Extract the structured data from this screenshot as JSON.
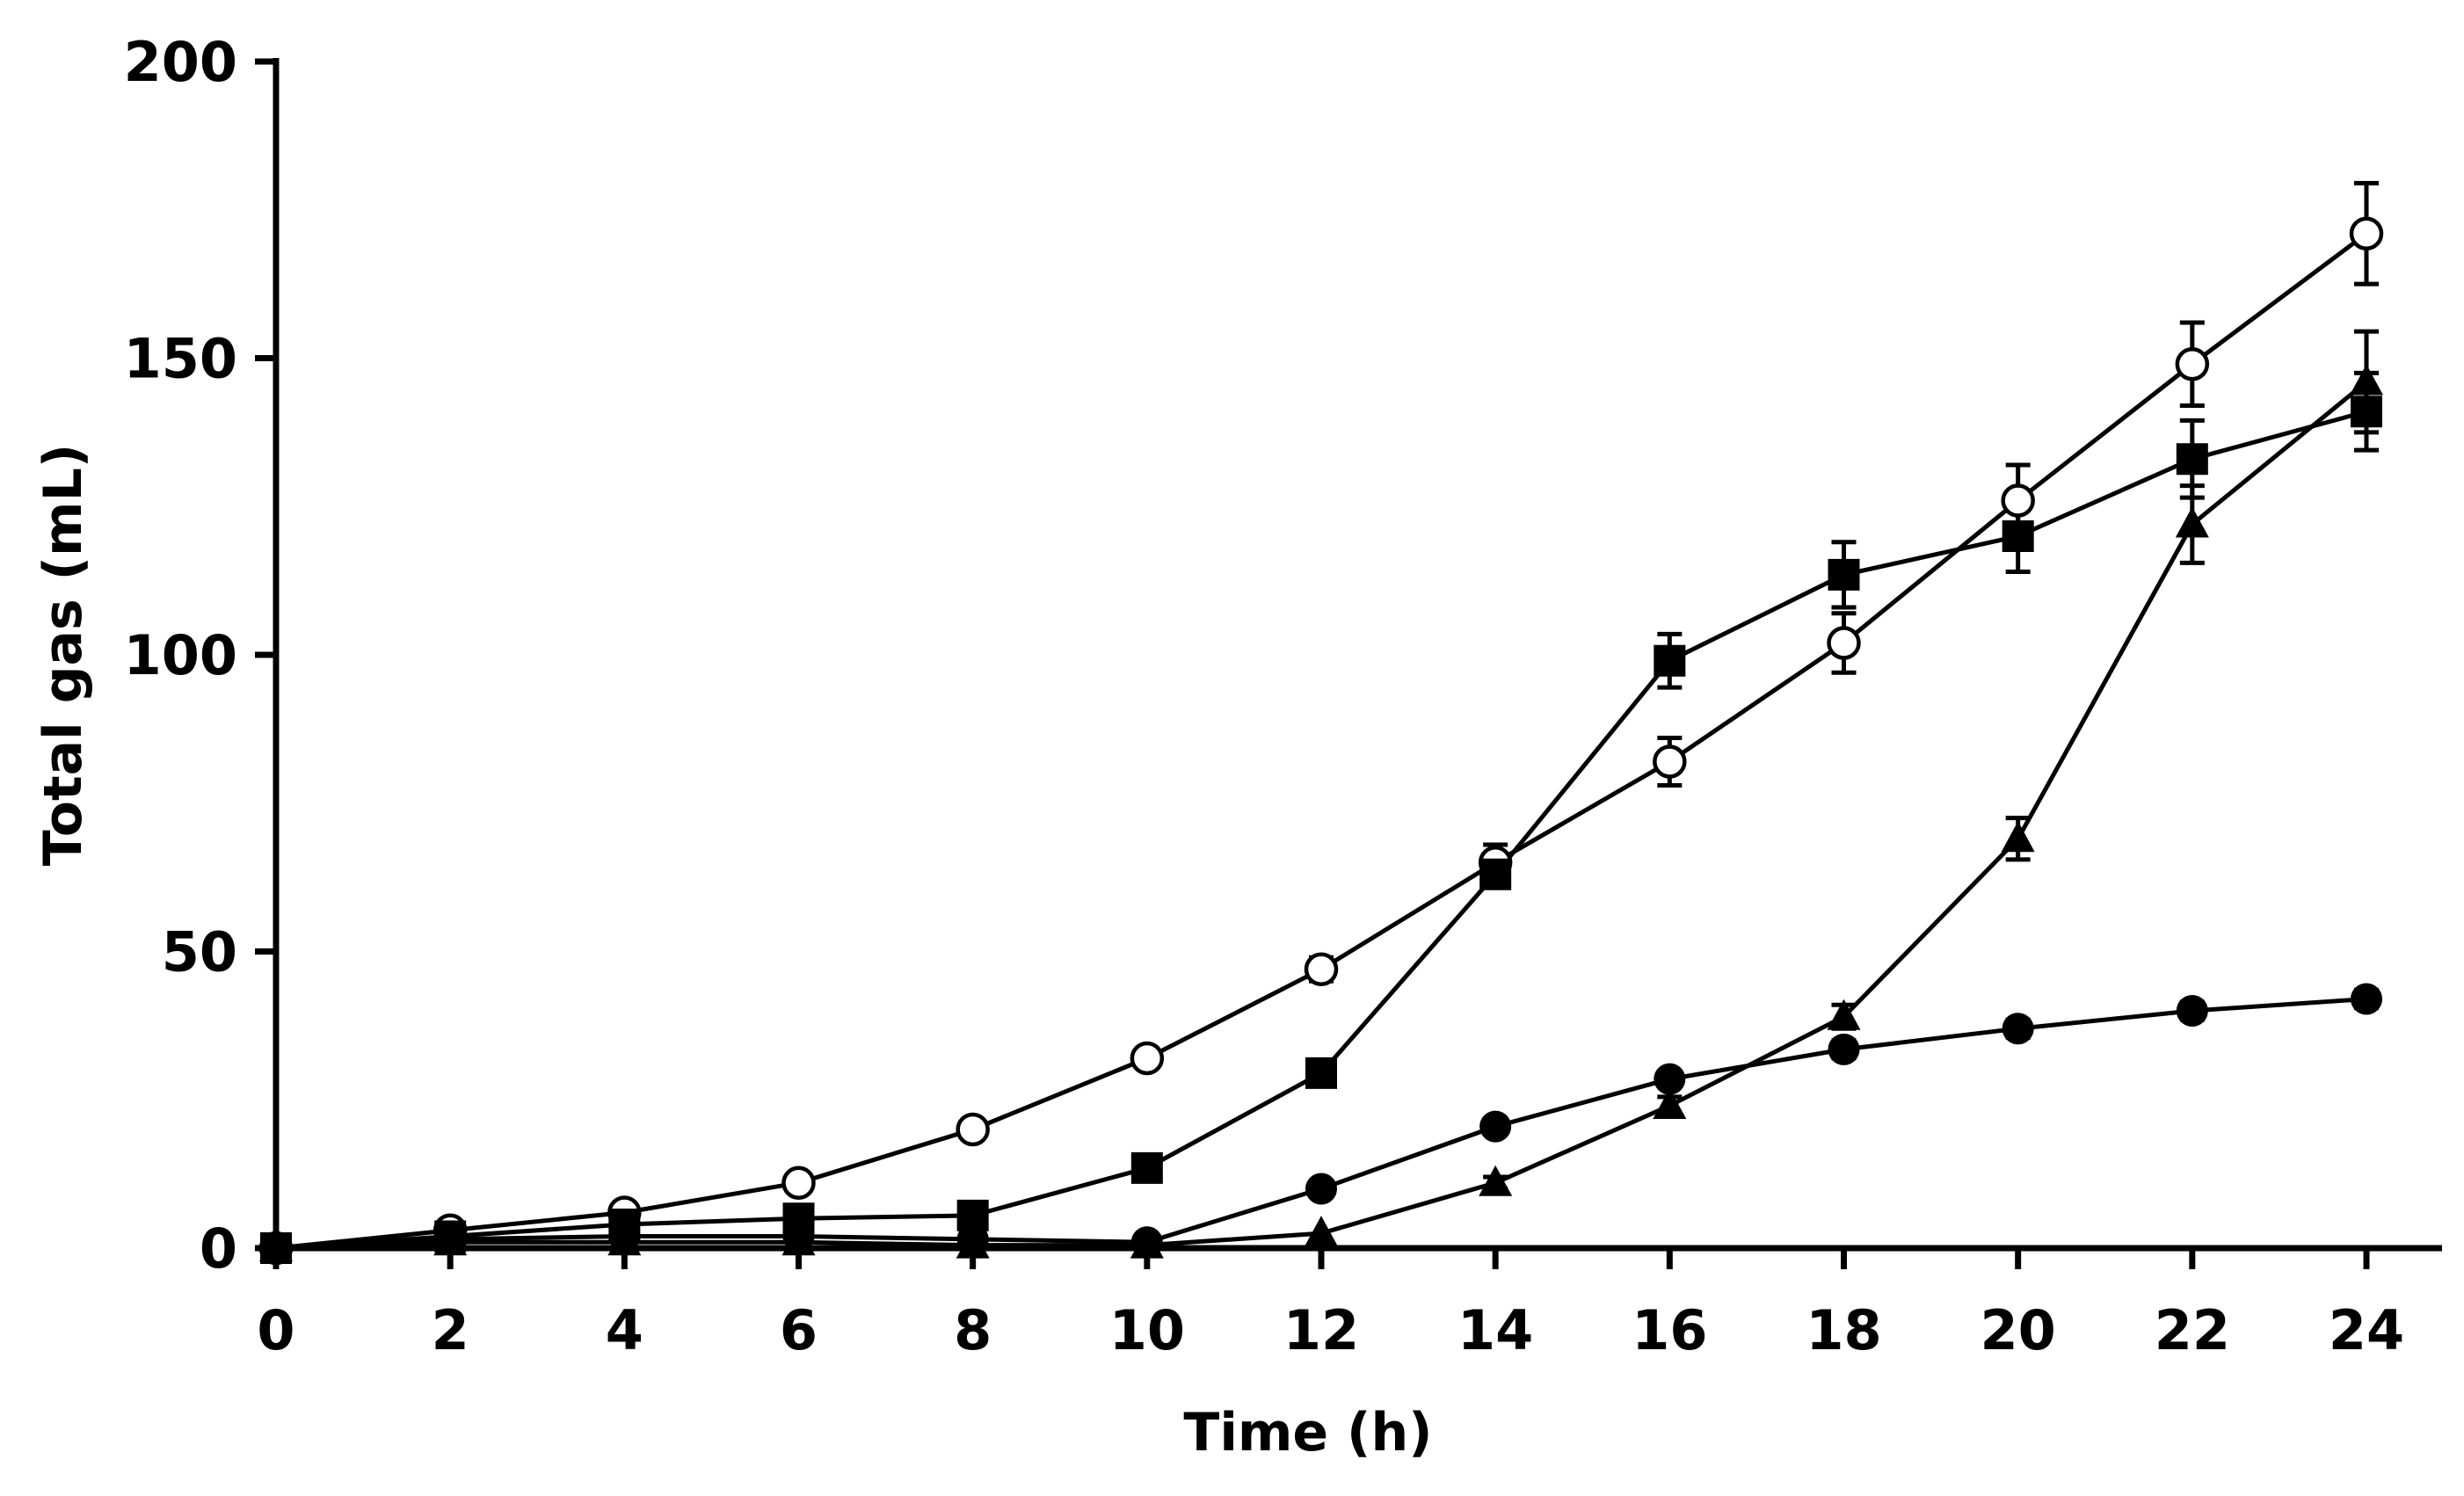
{
  "chart_data": {
    "type": "line",
    "title": "",
    "xlabel": "Time (h)",
    "ylabel": "Total gas (mL)",
    "xlim": [
      0,
      24
    ],
    "ylim": [
      0,
      200
    ],
    "x_ticks": [
      0,
      2,
      4,
      6,
      8,
      10,
      12,
      14,
      16,
      18,
      20,
      22,
      24
    ],
    "y_ticks": [
      0,
      50,
      100,
      150,
      200
    ],
    "x": [
      0,
      2,
      4,
      6,
      8,
      10,
      12,
      14,
      16,
      18,
      20,
      22,
      24
    ],
    "grid": false,
    "legend": "none",
    "series": [
      {
        "name": "open circle",
        "marker": "circle-open",
        "values": [
          0,
          3,
          6,
          11,
          20,
          32,
          47,
          65,
          82,
          102,
          126,
          149,
          171
        ],
        "errors": [
          0,
          0,
          0,
          0,
          0,
          0,
          2,
          3,
          4,
          5,
          6,
          7,
          8.5
        ]
      },
      {
        "name": "filled square",
        "marker": "square-filled",
        "values": [
          0,
          2,
          4,
          5,
          5.5,
          13.5,
          29.5,
          63,
          99,
          113.5,
          120,
          133,
          141
        ],
        "errors": [
          0,
          0,
          0,
          0,
          0,
          0,
          0,
          2,
          4.5,
          5.5,
          6,
          6.5,
          6.5
        ]
      },
      {
        "name": "filled triangle",
        "marker": "triangle-filled",
        "values": [
          0,
          1,
          1,
          1,
          0.5,
          0.5,
          2.5,
          11,
          24,
          39,
          69,
          122,
          146
        ],
        "errors": [
          0,
          0,
          0,
          0,
          0,
          0,
          0,
          1,
          1.5,
          2,
          3.5,
          6.5,
          8.5
        ]
      },
      {
        "name": "filled circle",
        "marker": "circle-filled",
        "values": [
          0,
          1.5,
          2,
          2,
          1.5,
          1,
          10,
          20.5,
          28.5,
          33.5,
          37,
          40,
          42
        ],
        "errors": [
          0,
          0,
          0,
          0,
          0,
          0,
          0,
          0,
          1,
          1.5,
          1.5,
          1.5,
          1.5
        ]
      }
    ]
  }
}
